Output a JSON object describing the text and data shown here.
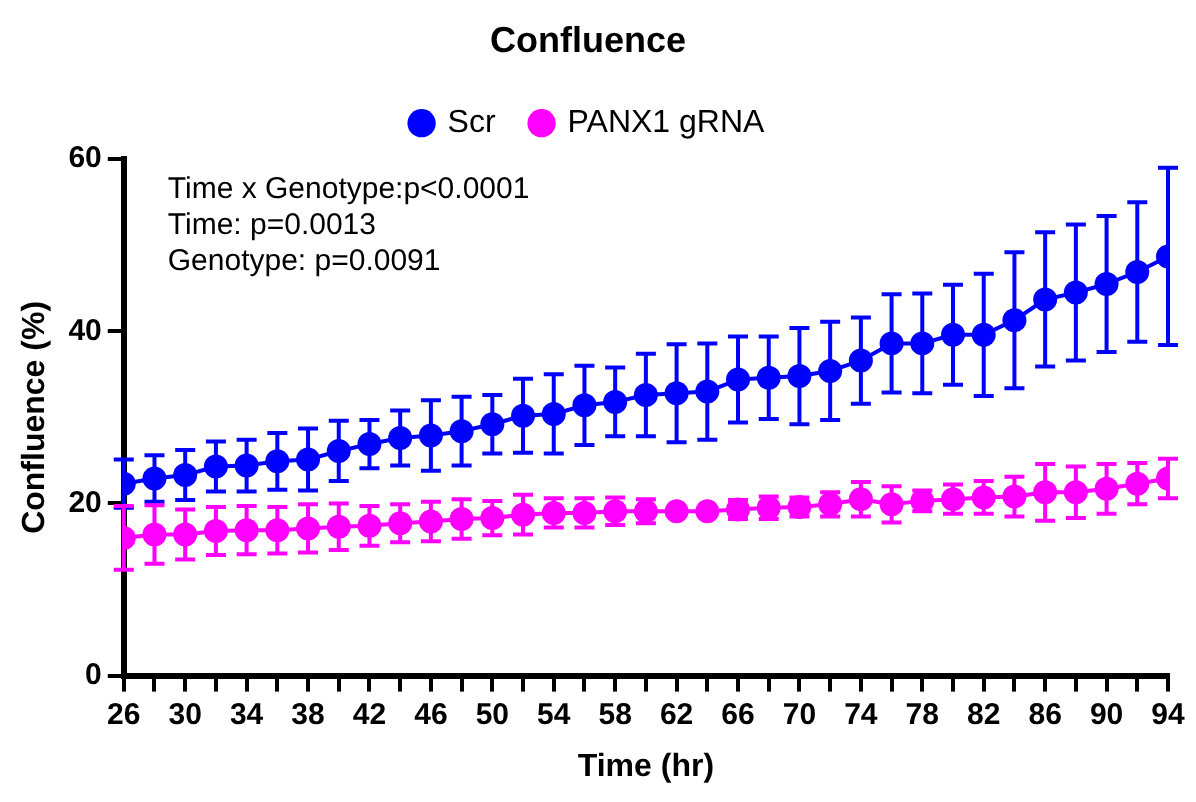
{
  "chart_data": {
    "type": "line",
    "title": "Confluence",
    "xlabel": "Time (hr)",
    "ylabel": "Confluence (%)",
    "x": [
      26,
      28,
      30,
      32,
      34,
      36,
      38,
      40,
      42,
      44,
      46,
      48,
      50,
      52,
      54,
      56,
      58,
      60,
      62,
      64,
      66,
      68,
      70,
      72,
      74,
      76,
      78,
      80,
      82,
      84,
      86,
      88,
      90,
      92,
      94
    ],
    "series": [
      {
        "name": "Scr",
        "color": "#0000ff",
        "values": [
          22.3,
          22.9,
          23.3,
          24.3,
          24.4,
          24.9,
          25.1,
          26.1,
          26.9,
          27.6,
          27.9,
          28.4,
          29.2,
          30.2,
          30.4,
          31.4,
          31.8,
          32.6,
          32.8,
          33.0,
          34.4,
          34.6,
          34.8,
          35.4,
          36.6,
          38.6,
          38.6,
          39.6,
          39.6,
          41.3,
          43.7,
          44.5,
          45.5,
          46.9,
          48.7
        ],
        "errors": [
          2.8,
          2.7,
          2.9,
          2.9,
          3.0,
          3.3,
          3.6,
          3.5,
          2.8,
          3.2,
          4.1,
          4.0,
          3.4,
          4.3,
          4.6,
          4.6,
          4.0,
          4.8,
          5.7,
          5.6,
          5.0,
          4.8,
          5.6,
          5.7,
          5.0,
          5.7,
          5.8,
          5.8,
          7.1,
          7.9,
          7.8,
          7.9,
          7.9,
          8.1,
          10.3
        ]
      },
      {
        "name": "PANX1 gRNA",
        "color": "#ff00ff",
        "values": [
          16.0,
          16.4,
          16.4,
          16.8,
          16.9,
          16.9,
          17.1,
          17.3,
          17.4,
          17.7,
          17.9,
          18.2,
          18.3,
          18.7,
          18.9,
          18.9,
          19.1,
          19.1,
          19.1,
          19.1,
          19.3,
          19.5,
          19.6,
          19.9,
          20.5,
          19.9,
          20.3,
          20.5,
          20.7,
          20.8,
          21.3,
          21.3,
          21.7,
          22.3,
          22.9
        ],
        "errors": [
          3.7,
          3.4,
          2.9,
          2.8,
          2.8,
          2.7,
          2.8,
          2.7,
          2.3,
          2.2,
          2.3,
          2.3,
          2.0,
          2.3,
          1.7,
          1.7,
          1.6,
          1.4,
          null,
          null,
          1.1,
          1.3,
          1.1,
          1.4,
          2.0,
          2.1,
          1.2,
          1.7,
          1.9,
          2.3,
          3.3,
          3.0,
          2.9,
          2.4,
          2.3
        ]
      }
    ],
    "xlim": [
      26,
      94
    ],
    "xticks": [
      26,
      {
        "value": 28,
        "label": null
      },
      30,
      {
        "value": 32,
        "label": null
      },
      34,
      {
        "value": 36,
        "label": null
      },
      38,
      {
        "value": 40,
        "label": null
      },
      42,
      {
        "value": 44,
        "label": null
      },
      46,
      {
        "value": 48,
        "label": null
      },
      50,
      {
        "value": 52,
        "label": null
      },
      54,
      {
        "value": 56,
        "label": null
      },
      58,
      {
        "value": 60,
        "label": null
      },
      62,
      {
        "value": 64,
        "label": null
      },
      66,
      {
        "value": 68,
        "label": null
      },
      70,
      {
        "value": 72,
        "label": null
      },
      74,
      {
        "value": 76,
        "label": null
      },
      78,
      {
        "value": 80,
        "label": null
      },
      82,
      {
        "value": 84,
        "label": null
      },
      86,
      {
        "value": 88,
        "label": null
      },
      90,
      {
        "value": 92,
        "label": null
      },
      94
    ],
    "ylim": [
      0,
      60
    ],
    "yticks": [
      0,
      20,
      40,
      60
    ],
    "grid": false,
    "legend": "top",
    "marker": "circle",
    "line_style": "solid",
    "annotations": [
      "Time x Genotype:p<0.0001",
      "Time: p=0.0013",
      "Genotype: p=0.0091"
    ]
  }
}
